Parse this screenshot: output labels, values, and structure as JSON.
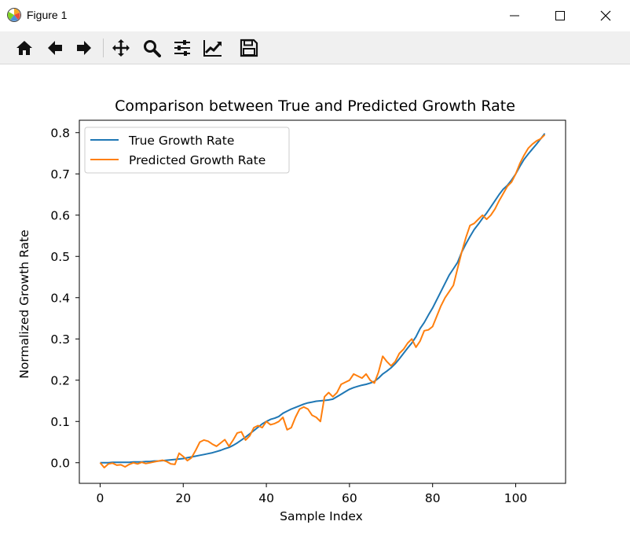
{
  "window": {
    "title": "Figure 1"
  },
  "toolbar": {
    "buttons": [
      {
        "icon": "home-icon"
      },
      {
        "icon": "back-arrow-icon"
      },
      {
        "icon": "forward-arrow-icon"
      },
      {
        "icon": "pan-move-icon"
      },
      {
        "icon": "zoom-magnifier-icon"
      },
      {
        "icon": "configure-subplots-icon"
      },
      {
        "icon": "edit-axis-icon"
      },
      {
        "icon": "save-floppy-icon"
      }
    ]
  },
  "chart_data": {
    "type": "line",
    "title": "Comparison between True and Predicted Growth Rate",
    "xlabel": "Sample Index",
    "ylabel": "Normalized Growth Rate",
    "xlim": [
      -5,
      112
    ],
    "ylim": [
      -0.05,
      0.83
    ],
    "xticks": [
      0,
      20,
      40,
      60,
      80,
      100
    ],
    "yticks": [
      0.0,
      0.1,
      0.2,
      0.3,
      0.4,
      0.5,
      0.6,
      0.7,
      0.8
    ],
    "xtick_labels": [
      "0",
      "20",
      "40",
      "60",
      "80",
      "100"
    ],
    "ytick_labels": [
      "0.0",
      "0.1",
      "0.2",
      "0.3",
      "0.4",
      "0.5",
      "0.6",
      "0.7",
      "0.8"
    ],
    "grid": false,
    "legend": {
      "position": "top-left"
    },
    "series": [
      {
        "name": "True Growth Rate",
        "color": "#1f77b4",
        "x": [
          0,
          1,
          2,
          3,
          4,
          5,
          6,
          7,
          8,
          9,
          10,
          11,
          12,
          13,
          14,
          15,
          16,
          17,
          18,
          19,
          20,
          21,
          22,
          23,
          24,
          25,
          26,
          27,
          28,
          29,
          30,
          31,
          32,
          33,
          34,
          35,
          36,
          37,
          38,
          39,
          40,
          41,
          42,
          43,
          44,
          45,
          46,
          47,
          48,
          49,
          50,
          51,
          52,
          53,
          54,
          55,
          56,
          57,
          58,
          59,
          60,
          61,
          62,
          63,
          64,
          65,
          66,
          67,
          68,
          69,
          70,
          71,
          72,
          73,
          74,
          75,
          76,
          77,
          78,
          79,
          80,
          81,
          82,
          83,
          84,
          85,
          86,
          87,
          88,
          89,
          90,
          91,
          92,
          93,
          94,
          95,
          96,
          97,
          98,
          99,
          100,
          101,
          102,
          103,
          104,
          105,
          106,
          107
        ],
        "values": [
          0.0,
          0.0,
          0.0,
          0.001,
          0.001,
          0.001,
          0.001,
          0.001,
          0.002,
          0.002,
          0.002,
          0.003,
          0.003,
          0.004,
          0.004,
          0.005,
          0.006,
          0.007,
          0.008,
          0.009,
          0.01,
          0.012,
          0.014,
          0.016,
          0.018,
          0.02,
          0.022,
          0.024,
          0.027,
          0.03,
          0.034,
          0.037,
          0.042,
          0.048,
          0.055,
          0.062,
          0.07,
          0.078,
          0.086,
          0.094,
          0.1,
          0.105,
          0.108,
          0.112,
          0.12,
          0.125,
          0.13,
          0.134,
          0.138,
          0.142,
          0.145,
          0.147,
          0.149,
          0.15,
          0.151,
          0.152,
          0.154,
          0.16,
          0.166,
          0.172,
          0.178,
          0.182,
          0.185,
          0.188,
          0.19,
          0.193,
          0.197,
          0.205,
          0.215,
          0.222,
          0.23,
          0.24,
          0.252,
          0.265,
          0.278,
          0.29,
          0.305,
          0.325,
          0.34,
          0.358,
          0.375,
          0.395,
          0.415,
          0.435,
          0.455,
          0.47,
          0.485,
          0.51,
          0.53,
          0.548,
          0.565,
          0.578,
          0.592,
          0.605,
          0.62,
          0.635,
          0.65,
          0.663,
          0.672,
          0.685,
          0.7,
          0.718,
          0.735,
          0.748,
          0.76,
          0.772,
          0.785,
          0.798
        ]
      },
      {
        "name": "Predicted Growth Rate",
        "color": "#ff7f0e",
        "x": [
          0,
          1,
          2,
          3,
          4,
          5,
          6,
          7,
          8,
          9,
          10,
          11,
          12,
          13,
          14,
          15,
          16,
          17,
          18,
          19,
          20,
          21,
          22,
          23,
          24,
          25,
          26,
          27,
          28,
          29,
          30,
          31,
          32,
          33,
          34,
          35,
          36,
          37,
          38,
          39,
          40,
          41,
          42,
          43,
          44,
          45,
          46,
          47,
          48,
          49,
          50,
          51,
          52,
          53,
          54,
          55,
          56,
          57,
          58,
          59,
          60,
          61,
          62,
          63,
          64,
          65,
          66,
          67,
          68,
          69,
          70,
          71,
          72,
          73,
          74,
          75,
          76,
          77,
          78,
          79,
          80,
          81,
          82,
          83,
          84,
          85,
          86,
          87,
          88,
          89,
          90,
          91,
          92,
          93,
          94,
          95,
          96,
          97,
          98,
          99,
          100,
          101,
          102,
          103,
          104,
          105,
          106,
          107
        ],
        "values": [
          0.0,
          -0.012,
          -0.003,
          -0.001,
          -0.006,
          -0.005,
          -0.01,
          -0.004,
          0.0,
          -0.003,
          0.001,
          -0.002,
          0.0,
          0.002,
          0.004,
          0.006,
          0.003,
          -0.003,
          -0.004,
          0.023,
          0.015,
          0.005,
          0.012,
          0.03,
          0.05,
          0.055,
          0.052,
          0.045,
          0.04,
          0.048,
          0.056,
          0.04,
          0.055,
          0.072,
          0.075,
          0.055,
          0.065,
          0.085,
          0.09,
          0.085,
          0.1,
          0.092,
          0.095,
          0.1,
          0.11,
          0.08,
          0.085,
          0.11,
          0.13,
          0.135,
          0.13,
          0.115,
          0.11,
          0.1,
          0.16,
          0.17,
          0.16,
          0.17,
          0.19,
          0.195,
          0.2,
          0.215,
          0.21,
          0.205,
          0.215,
          0.2,
          0.193,
          0.22,
          0.258,
          0.245,
          0.235,
          0.245,
          0.265,
          0.275,
          0.29,
          0.3,
          0.28,
          0.295,
          0.32,
          0.322,
          0.33,
          0.355,
          0.38,
          0.4,
          0.415,
          0.43,
          0.47,
          0.51,
          0.545,
          0.575,
          0.58,
          0.59,
          0.6,
          0.59,
          0.6,
          0.615,
          0.635,
          0.652,
          0.67,
          0.68,
          0.7,
          0.725,
          0.745,
          0.762,
          0.772,
          0.78,
          0.785,
          0.795
        ]
      }
    ]
  }
}
